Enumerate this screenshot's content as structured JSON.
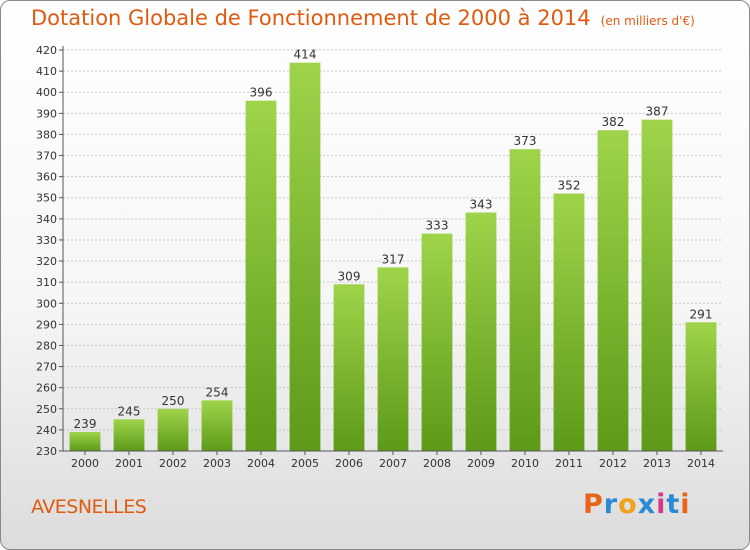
{
  "header": {
    "title": "Dotation Globale de Fonctionnement de 2000 à 2014",
    "unit": "(en milliers d'€)"
  },
  "footer": {
    "place": "AVESNELLES",
    "logo_letters": [
      "P",
      "r",
      "o",
      "x",
      "i",
      "t",
      "i"
    ]
  },
  "colors": {
    "title": "#e05a10",
    "bar_light": "#9fd44a",
    "bar_dark": "#5c9a18",
    "grid": "#c8c8c8",
    "logo": [
      "#e8641a",
      "#2a8ad4",
      "#f0a21a",
      "#2a8ad4",
      "#d43a8a",
      "#2a8ad4",
      "#e8641a"
    ]
  },
  "chart_data": {
    "type": "bar",
    "title": "Dotation Globale de Fonctionnement de 2000 à 2014",
    "subtitle": "(en milliers d'€)",
    "xlabel": "",
    "ylabel": "",
    "categories": [
      "2000",
      "2001",
      "2002",
      "2003",
      "2004",
      "2005",
      "2006",
      "2007",
      "2008",
      "2009",
      "2010",
      "2011",
      "2012",
      "2013",
      "2014"
    ],
    "values": [
      239,
      245,
      250,
      254,
      396,
      414,
      309,
      317,
      333,
      343,
      373,
      352,
      382,
      387,
      291
    ],
    "ylim": [
      230,
      420
    ],
    "ytick_step": 10,
    "grid": true,
    "data_labels": true
  }
}
